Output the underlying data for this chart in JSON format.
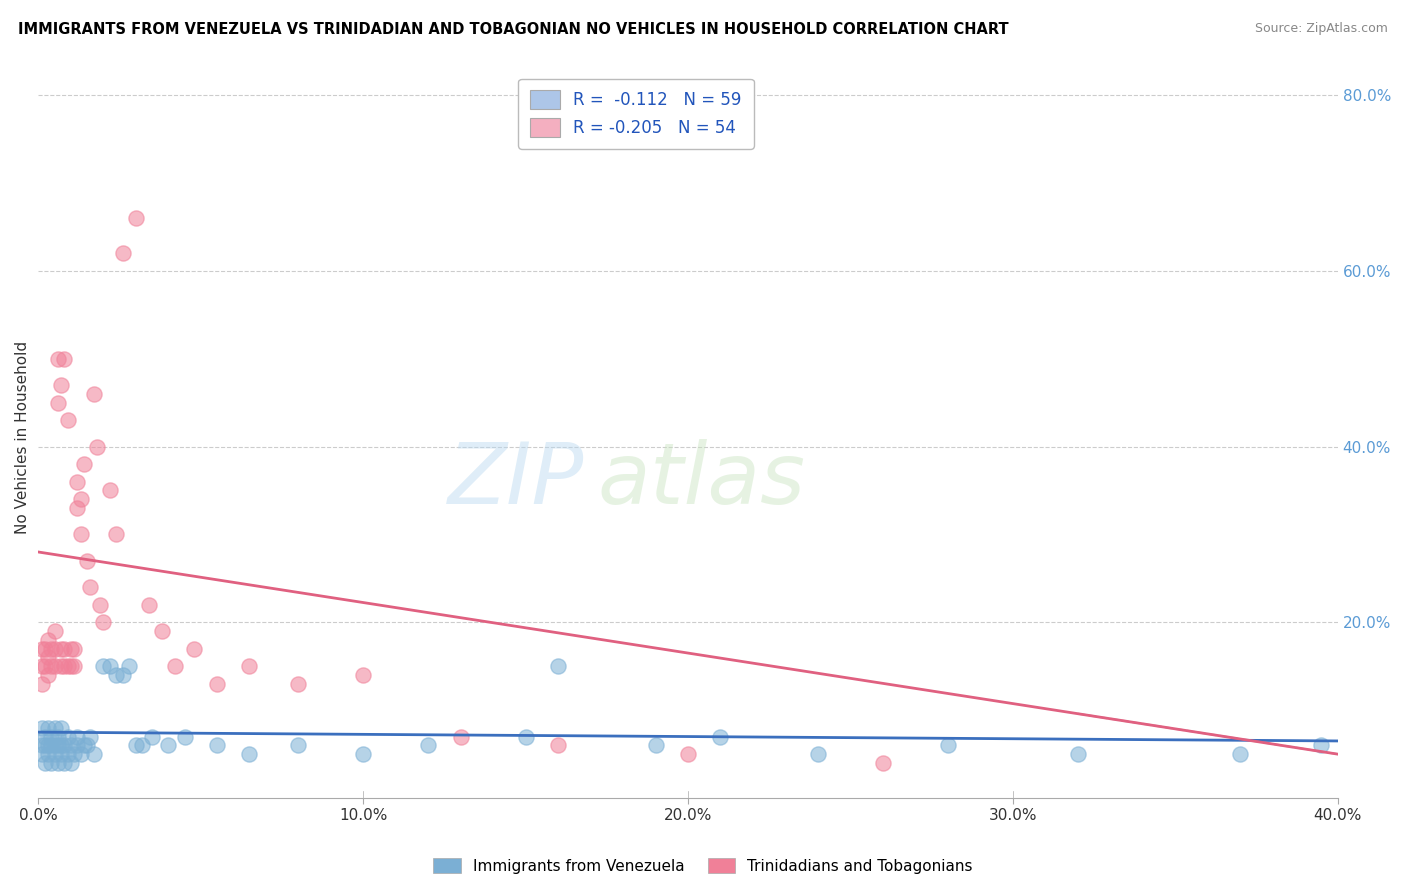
{
  "title": "IMMIGRANTS FROM VENEZUELA VS TRINIDADIAN AND TOBAGONIAN NO VEHICLES IN HOUSEHOLD CORRELATION CHART",
  "source": "Source: ZipAtlas.com",
  "ylabel": "No Vehicles in Household",
  "legend1_label": "R =  -0.112   N = 59",
  "legend2_label": "R = -0.205   N = 54",
  "legend1_color": "#adc6e8",
  "legend2_color": "#f4afc0",
  "scatter1_color": "#7bafd4",
  "scatter2_color": "#f08098",
  "line1_color": "#3b6fbe",
  "line2_color": "#e06080",
  "watermark_zip": "ZIP",
  "watermark_atlas": "atlas",
  "xlim": [
    0.0,
    0.4
  ],
  "ylim": [
    0.0,
    0.82
  ],
  "r1": -0.112,
  "r2": -0.205,
  "scatter1_x": [
    0.001,
    0.001,
    0.001,
    0.002,
    0.002,
    0.002,
    0.003,
    0.003,
    0.003,
    0.004,
    0.004,
    0.004,
    0.005,
    0.005,
    0.005,
    0.006,
    0.006,
    0.006,
    0.007,
    0.007,
    0.007,
    0.008,
    0.008,
    0.009,
    0.009,
    0.01,
    0.01,
    0.011,
    0.012,
    0.012,
    0.013,
    0.014,
    0.015,
    0.016,
    0.017,
    0.02,
    0.022,
    0.024,
    0.026,
    0.028,
    0.03,
    0.032,
    0.035,
    0.04,
    0.045,
    0.055,
    0.065,
    0.08,
    0.1,
    0.12,
    0.15,
    0.16,
    0.19,
    0.21,
    0.24,
    0.28,
    0.32,
    0.37,
    0.395
  ],
  "scatter1_y": [
    0.05,
    0.06,
    0.08,
    0.04,
    0.06,
    0.07,
    0.05,
    0.06,
    0.08,
    0.04,
    0.06,
    0.07,
    0.05,
    0.06,
    0.08,
    0.04,
    0.06,
    0.07,
    0.05,
    0.06,
    0.08,
    0.04,
    0.06,
    0.05,
    0.07,
    0.04,
    0.06,
    0.05,
    0.06,
    0.07,
    0.05,
    0.06,
    0.06,
    0.07,
    0.05,
    0.15,
    0.15,
    0.14,
    0.14,
    0.15,
    0.06,
    0.06,
    0.07,
    0.06,
    0.07,
    0.06,
    0.05,
    0.06,
    0.05,
    0.06,
    0.07,
    0.15,
    0.06,
    0.07,
    0.05,
    0.06,
    0.05,
    0.05,
    0.06
  ],
  "scatter2_x": [
    0.001,
    0.001,
    0.001,
    0.002,
    0.002,
    0.003,
    0.003,
    0.003,
    0.004,
    0.004,
    0.005,
    0.005,
    0.005,
    0.006,
    0.006,
    0.007,
    0.007,
    0.007,
    0.008,
    0.008,
    0.008,
    0.009,
    0.009,
    0.01,
    0.01,
    0.011,
    0.011,
    0.012,
    0.012,
    0.013,
    0.013,
    0.014,
    0.015,
    0.016,
    0.017,
    0.018,
    0.019,
    0.02,
    0.022,
    0.024,
    0.026,
    0.03,
    0.034,
    0.038,
    0.042,
    0.048,
    0.055,
    0.065,
    0.08,
    0.1,
    0.13,
    0.16,
    0.2,
    0.26
  ],
  "scatter2_y": [
    0.13,
    0.15,
    0.17,
    0.15,
    0.17,
    0.14,
    0.16,
    0.18,
    0.15,
    0.17,
    0.15,
    0.17,
    0.19,
    0.45,
    0.5,
    0.15,
    0.17,
    0.47,
    0.15,
    0.17,
    0.5,
    0.43,
    0.15,
    0.15,
    0.17,
    0.15,
    0.17,
    0.33,
    0.36,
    0.3,
    0.34,
    0.38,
    0.27,
    0.24,
    0.46,
    0.4,
    0.22,
    0.2,
    0.35,
    0.3,
    0.62,
    0.66,
    0.22,
    0.19,
    0.15,
    0.17,
    0.13,
    0.15,
    0.13,
    0.14,
    0.07,
    0.06,
    0.05,
    0.04
  ]
}
